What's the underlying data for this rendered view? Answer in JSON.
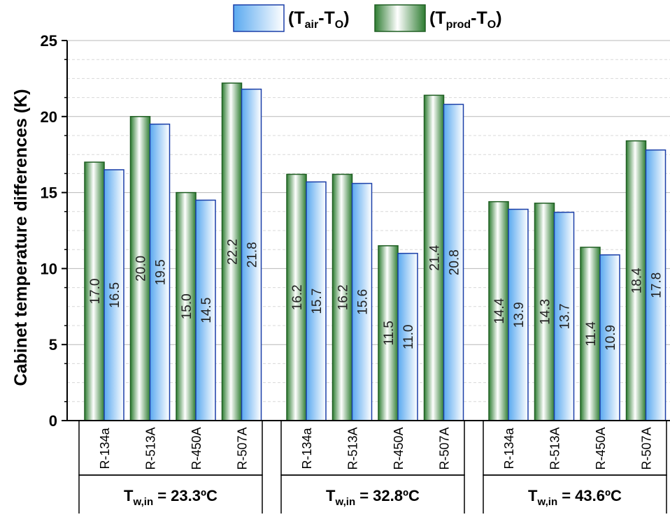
{
  "chart_data": {
    "type": "bar",
    "ylabel": "Cabinet temperature differences (K)",
    "ylim": [
      0,
      25
    ],
    "y_ticks": [
      0,
      5,
      10,
      15,
      20,
      25
    ],
    "grid": true,
    "legend_position": "top",
    "legend": [
      {
        "main": "(T",
        "sub": "air",
        "mid": "-T",
        "sub2": "O",
        "end": ")"
      },
      {
        "main": "(T",
        "sub": "prod",
        "mid": "-T",
        "sub2": "O",
        "end": ")"
      }
    ],
    "groups": [
      {
        "label_main": "T",
        "label_sub": "w,in",
        "label_rest": " = 23.3ºC",
        "categories": [
          "R-134a",
          "R-513A",
          "R-450A",
          "R-507A"
        ],
        "prod": [
          17.0,
          20.0,
          15.0,
          22.2
        ],
        "air": [
          16.5,
          19.5,
          14.5,
          21.8
        ],
        "prod_labels": [
          "17.0",
          "20.0",
          "15.0",
          "22.2"
        ],
        "air_labels": [
          "16.5",
          "19.5",
          "14.5",
          "21.8"
        ]
      },
      {
        "label_main": "T",
        "label_sub": "w,in",
        "label_rest": " = 32.8ºC",
        "categories": [
          "R-134a",
          "R-513A",
          "R-450A",
          "R-507A"
        ],
        "prod": [
          16.2,
          16.2,
          11.5,
          21.4
        ],
        "air": [
          15.7,
          15.6,
          11.0,
          20.8
        ],
        "prod_labels": [
          "16.2",
          "16.2",
          "11.5",
          "21.4"
        ],
        "air_labels": [
          "15.7",
          "15.6",
          "11.0",
          "20.8"
        ]
      },
      {
        "label_main": "T",
        "label_sub": "w,in",
        "label_rest": " = 43.6ºC",
        "categories": [
          "R-134a",
          "R-513A",
          "R-450A",
          "R-507A"
        ],
        "prod": [
          14.4,
          14.3,
          11.4,
          18.4
        ],
        "air": [
          13.9,
          13.7,
          10.9,
          17.8
        ],
        "prod_labels": [
          "14.4",
          "14.3",
          "11.4",
          "18.4"
        ],
        "air_labels": [
          "13.9",
          "13.7",
          "10.9",
          "17.8"
        ]
      }
    ],
    "colors": {
      "prod_dark": "#2e7d32",
      "prod_light": "#ffffff",
      "air_dark": "#5aa9f0",
      "air_light": "#ffffff",
      "air_border": "#1a3fa8",
      "prod_border": "#1f5e22"
    }
  }
}
